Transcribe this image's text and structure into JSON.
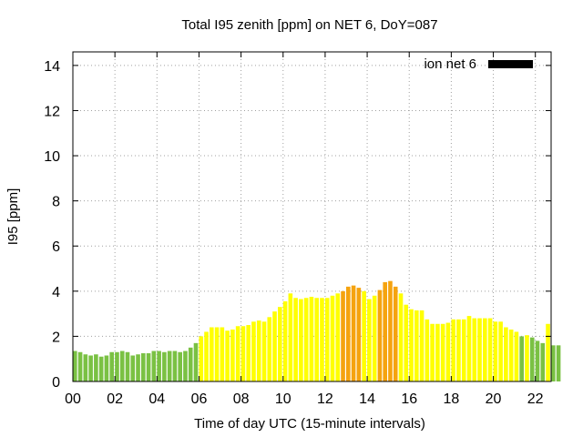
{
  "chart_data": {
    "type": "bar",
    "title": "Total I95 zenith [ppm] on NET 6, DoY=087",
    "xlabel": "Time of day UTC (15-minute intervals)",
    "ylabel": "I95 [ppm]",
    "xlim": [
      0,
      22.75
    ],
    "ylim": [
      0,
      14.6
    ],
    "xticks": [
      "00",
      "02",
      "04",
      "06",
      "08",
      "10",
      "12",
      "14",
      "16",
      "18",
      "20",
      "22"
    ],
    "yticks": [
      "0",
      "2",
      "4",
      "6",
      "8",
      "10",
      "12",
      "14"
    ],
    "xtick_values": [
      0,
      2,
      4,
      6,
      8,
      10,
      12,
      14,
      16,
      18,
      20,
      22
    ],
    "ytick_values": [
      0,
      2,
      4,
      6,
      8,
      10,
      12,
      14
    ],
    "grid": true,
    "legend": {
      "position": "top-right",
      "entries": [
        {
          "label": "ion net 6",
          "color": "#000000"
        }
      ]
    },
    "bar_interval_hours": 0.25,
    "values": [
      1.35,
      1.3,
      1.2,
      1.15,
      1.2,
      1.1,
      1.15,
      1.3,
      1.3,
      1.35,
      1.3,
      1.15,
      1.2,
      1.25,
      1.25,
      1.35,
      1.35,
      1.3,
      1.35,
      1.35,
      1.3,
      1.35,
      1.5,
      1.7,
      2.0,
      2.2,
      2.4,
      2.4,
      2.4,
      2.25,
      2.3,
      2.45,
      2.45,
      2.5,
      2.65,
      2.7,
      2.65,
      2.85,
      3.1,
      3.3,
      3.55,
      3.9,
      3.7,
      3.65,
      3.7,
      3.75,
      3.7,
      3.7,
      3.7,
      3.8,
      3.9,
      4.0,
      4.2,
      4.25,
      4.15,
      4.0,
      3.65,
      3.8,
      4.05,
      4.4,
      4.45,
      4.2,
      3.9,
      3.4,
      3.2,
      3.15,
      3.15,
      2.75,
      2.55,
      2.55,
      2.55,
      2.6,
      2.75,
      2.75,
      2.75,
      2.9,
      2.8,
      2.8,
      2.8,
      2.8,
      2.65,
      2.65,
      2.4,
      2.3,
      2.2,
      2.0,
      2.05,
      1.95,
      1.8,
      1.7,
      2.55,
      1.6,
      1.6
    ],
    "colors": [
      "#7ac143",
      "#7ac143",
      "#7ac143",
      "#7ac143",
      "#7ac143",
      "#7ac143",
      "#7ac143",
      "#7ac143",
      "#7ac143",
      "#7ac143",
      "#7ac143",
      "#7ac143",
      "#7ac143",
      "#7ac143",
      "#7ac143",
      "#7ac143",
      "#7ac143",
      "#7ac143",
      "#7ac143",
      "#7ac143",
      "#7ac143",
      "#7ac143",
      "#7ac143",
      "#7ac143",
      "#ffff00",
      "#ffff00",
      "#ffff00",
      "#ffff00",
      "#ffff00",
      "#ffff00",
      "#ffff00",
      "#ffff00",
      "#ffff00",
      "#ffff00",
      "#ffff00",
      "#ffff00",
      "#ffff00",
      "#ffff00",
      "#ffff00",
      "#ffff00",
      "#ffff00",
      "#ffff00",
      "#ffff00",
      "#ffff00",
      "#ffff00",
      "#ffff00",
      "#ffff00",
      "#ffff00",
      "#ffff00",
      "#ffff00",
      "#ffff00",
      "#f5a30f",
      "#f5a30f",
      "#f5a30f",
      "#f5a30f",
      "#ffff00",
      "#ffff00",
      "#ffff00",
      "#f5a30f",
      "#f5a30f",
      "#f5a30f",
      "#f5a30f",
      "#ffff00",
      "#ffff00",
      "#ffff00",
      "#ffff00",
      "#ffff00",
      "#ffff00",
      "#ffff00",
      "#ffff00",
      "#ffff00",
      "#ffff00",
      "#ffff00",
      "#ffff00",
      "#ffff00",
      "#ffff00",
      "#ffff00",
      "#ffff00",
      "#ffff00",
      "#ffff00",
      "#ffff00",
      "#ffff00",
      "#ffff00",
      "#ffff00",
      "#ffff00",
      "#7ac143",
      "#ffff00",
      "#7ac143",
      "#7ac143",
      "#7ac143",
      "#ffff00",
      "#7ac143",
      "#7ac143"
    ]
  }
}
